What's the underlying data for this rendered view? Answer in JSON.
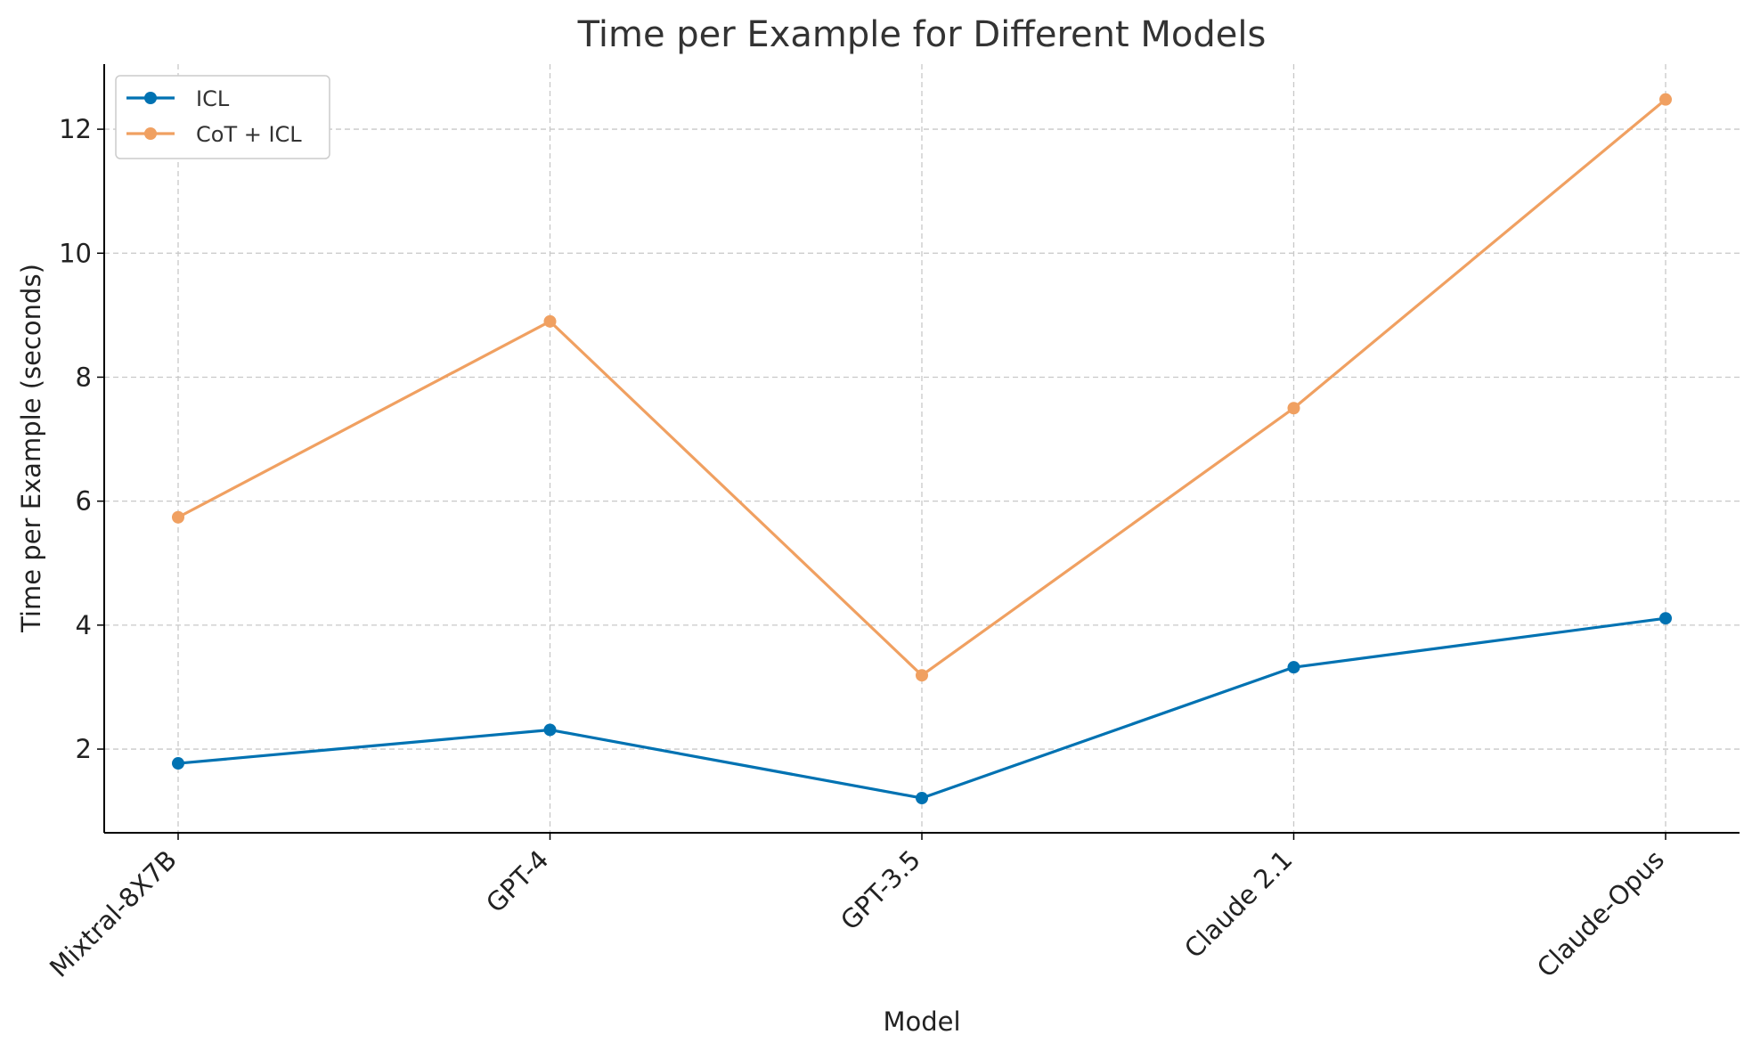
{
  "chart_data": {
    "type": "line",
    "title": "Time per Example for Different Models",
    "xlabel": "Model",
    "ylabel": "Time per Example (seconds)",
    "categories": [
      "Mixtral-8X7B",
      "GPT-4",
      "GPT-3.5",
      "Claude 2.1",
      "Claude-Opus"
    ],
    "ylim": [
      0.65,
      13.05
    ],
    "yticks": [
      2,
      4,
      6,
      8,
      10,
      12
    ],
    "grid": true,
    "legend_position": "top-left",
    "series": [
      {
        "name": "ICL",
        "color": "#0072b2",
        "values": [
          1.77,
          2.31,
          1.21,
          3.32,
          4.11
        ]
      },
      {
        "name": "CoT + ICL",
        "color": "#f0a061",
        "values": [
          5.74,
          8.9,
          3.19,
          7.5,
          12.48
        ]
      }
    ]
  }
}
